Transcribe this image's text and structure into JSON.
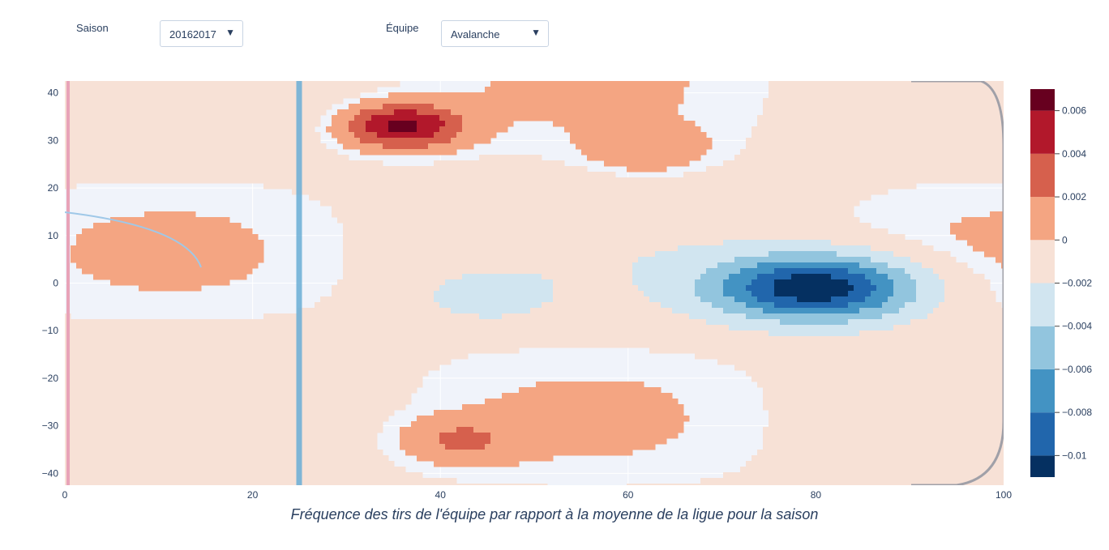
{
  "controls": {
    "season_label": "Saison",
    "season_value": "20162017",
    "team_label": "Équipe",
    "team_value": "Avalanche"
  },
  "colors": {
    "plot_bg": "#f0f3fa",
    "axis_text": "#2a3f5f",
    "scale": [
      "#053061",
      "#2166ac",
      "#4393c3",
      "#92c5de",
      "#d1e5f0",
      "#f7e1d6",
      "#f4a582",
      "#d6604d",
      "#b2182b",
      "#67001f"
    ]
  },
  "chart_data": {
    "type": "heatmap",
    "subtype": "contour",
    "title": "Fréquence des tirs de l'équipe par rapport à la moyenne de la ligue pour la saison",
    "xlabel": "",
    "ylabel": "",
    "xlim": [
      0,
      100
    ],
    "ylim": [
      -42.5,
      42.5
    ],
    "x_ticks": [
      0,
      20,
      40,
      60,
      80,
      100
    ],
    "y_ticks": [
      40,
      30,
      20,
      10,
      0,
      -10,
      -20,
      -30,
      -40
    ],
    "colorbar": {
      "range": [
        -0.011,
        0.007
      ],
      "ticks": [
        0.006,
        0.004,
        0.002,
        0,
        -0.002,
        -0.004,
        -0.006,
        -0.008,
        -0.01
      ],
      "tick_labels": [
        "0.006",
        "0.004",
        "0.002",
        "0",
        "−0.002",
        "−0.004",
        "−0.006",
        "−0.008",
        "−0.01"
      ]
    },
    "features": [
      {
        "kind": "peak",
        "x": 36,
        "y": 33,
        "value": 0.007
      },
      {
        "kind": "peak",
        "x": 42,
        "y": -33,
        "value": 0.0025
      },
      {
        "kind": "peak",
        "x": 62,
        "y": 28,
        "value": 0.0022
      },
      {
        "kind": "trough",
        "x": 80,
        "y": -1,
        "value": -0.011
      },
      {
        "kind": "trough",
        "x": 45,
        "y": -3,
        "value": -0.0025
      }
    ],
    "grid": true
  }
}
